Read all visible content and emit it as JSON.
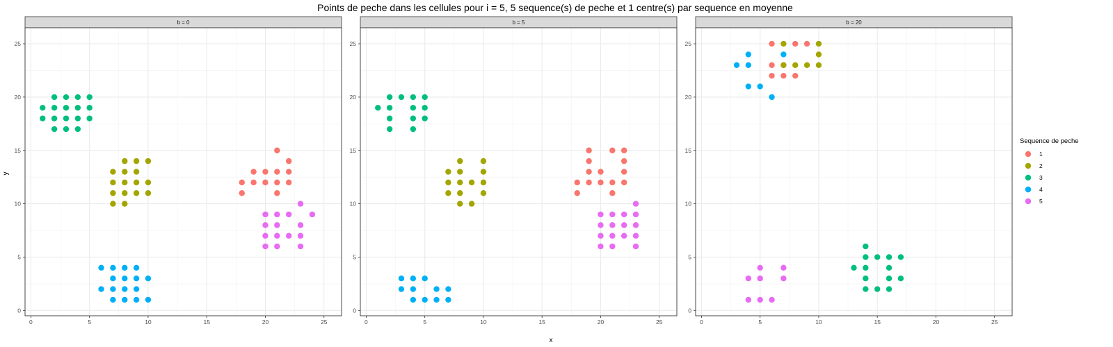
{
  "chart_data": {
    "type": "scatter",
    "title": "Points de peche dans les cellules pour i = 5, 5 sequence(s) de peche et 1 centre(s) par sequence en moyenne",
    "xlabel": "x",
    "ylabel": "y",
    "xlim": [
      -0.5,
      26.5
    ],
    "ylim": [
      -0.5,
      26.5
    ],
    "x_ticks": [
      "0",
      "5",
      "10",
      "15",
      "20",
      "25"
    ],
    "y_ticks": [
      "0",
      "5",
      "10",
      "15",
      "20",
      "25"
    ],
    "grid": true,
    "legend": {
      "title": "Sequence de peche",
      "placement": "right",
      "entries": [
        {
          "label": "1",
          "color": "#F8766D"
        },
        {
          "label": "2",
          "color": "#A3A500"
        },
        {
          "label": "3",
          "color": "#00BF7D"
        },
        {
          "label": "4",
          "color": "#00B0F6"
        },
        {
          "label": "5",
          "color": "#E76BF3"
        }
      ]
    },
    "panels": [
      {
        "strip": "b = 0",
        "series": [
          {
            "name": "1",
            "points": [
              [
                21,
                15
              ],
              [
                22,
                14
              ],
              [
                19,
                13
              ],
              [
                20,
                13
              ],
              [
                21,
                13
              ],
              [
                22,
                13
              ],
              [
                18,
                12
              ],
              [
                19,
                12
              ],
              [
                20,
                12
              ],
              [
                21,
                12
              ],
              [
                22,
                12
              ],
              [
                18,
                11
              ],
              [
                21,
                11
              ]
            ]
          },
          {
            "name": "2",
            "points": [
              [
                8,
                14
              ],
              [
                9,
                14
              ],
              [
                10,
                14
              ],
              [
                7,
                13
              ],
              [
                8,
                13
              ],
              [
                9,
                13
              ],
              [
                7,
                12
              ],
              [
                8,
                12
              ],
              [
                9,
                12
              ],
              [
                10,
                12
              ],
              [
                7,
                11
              ],
              [
                8,
                11
              ],
              [
                9,
                11
              ],
              [
                10,
                11
              ],
              [
                7,
                10
              ],
              [
                8,
                10
              ]
            ]
          },
          {
            "name": "3",
            "points": [
              [
                2,
                20
              ],
              [
                3,
                20
              ],
              [
                4,
                20
              ],
              [
                5,
                20
              ],
              [
                1,
                19
              ],
              [
                2,
                19
              ],
              [
                3,
                19
              ],
              [
                4,
                19
              ],
              [
                5,
                19
              ],
              [
                1,
                18
              ],
              [
                2,
                18
              ],
              [
                3,
                18
              ],
              [
                4,
                18
              ],
              [
                5,
                18
              ],
              [
                2,
                17
              ],
              [
                3,
                17
              ],
              [
                4,
                17
              ]
            ]
          },
          {
            "name": "4",
            "points": [
              [
                6,
                4
              ],
              [
                7,
                4
              ],
              [
                8,
                4
              ],
              [
                9,
                4
              ],
              [
                7,
                3
              ],
              [
                8,
                3
              ],
              [
                9,
                3
              ],
              [
                10,
                3
              ],
              [
                6,
                2
              ],
              [
                7,
                2
              ],
              [
                8,
                2
              ],
              [
                9,
                2
              ],
              [
                7,
                1
              ],
              [
                8,
                1
              ],
              [
                9,
                1
              ],
              [
                10,
                1
              ]
            ]
          },
          {
            "name": "5",
            "points": [
              [
                23,
                10
              ],
              [
                21,
                9
              ],
              [
                22,
                9
              ],
              [
                24,
                9
              ],
              [
                20,
                9
              ],
              [
                20,
                8
              ],
              [
                21,
                8
              ],
              [
                23,
                8
              ],
              [
                20,
                7
              ],
              [
                21,
                7
              ],
              [
                22,
                7
              ],
              [
                23,
                7
              ],
              [
                21,
                6
              ],
              [
                23,
                6
              ],
              [
                20,
                6
              ]
            ]
          }
        ]
      },
      {
        "strip": "b = 5",
        "series": [
          {
            "name": "1",
            "points": [
              [
                19,
                15
              ],
              [
                21,
                15
              ],
              [
                22,
                15
              ],
              [
                19,
                14
              ],
              [
                22,
                14
              ],
              [
                19,
                13
              ],
              [
                20,
                13
              ],
              [
                22,
                13
              ],
              [
                18,
                12
              ],
              [
                19,
                12
              ],
              [
                20,
                12
              ],
              [
                21,
                12
              ],
              [
                22,
                12
              ],
              [
                18,
                11
              ],
              [
                21,
                11
              ]
            ]
          },
          {
            "name": "2",
            "points": [
              [
                8,
                14
              ],
              [
                10,
                14
              ],
              [
                7,
                13
              ],
              [
                8,
                13
              ],
              [
                10,
                13
              ],
              [
                7,
                12
              ],
              [
                8,
                12
              ],
              [
                9,
                12
              ],
              [
                10,
                12
              ],
              [
                7,
                11
              ],
              [
                8,
                11
              ],
              [
                10,
                11
              ],
              [
                8,
                10
              ],
              [
                9,
                10
              ]
            ]
          },
          {
            "name": "3",
            "points": [
              [
                2,
                20
              ],
              [
                3,
                20
              ],
              [
                4,
                20
              ],
              [
                5,
                20
              ],
              [
                1,
                19
              ],
              [
                2,
                19
              ],
              [
                4,
                19
              ],
              [
                5,
                19
              ],
              [
                2,
                18
              ],
              [
                4,
                18
              ],
              [
                5,
                18
              ],
              [
                2,
                17
              ],
              [
                4,
                17
              ]
            ]
          },
          {
            "name": "4",
            "points": [
              [
                3,
                3
              ],
              [
                4,
                3
              ],
              [
                5,
                3
              ],
              [
                3,
                2
              ],
              [
                4,
                2
              ],
              [
                6,
                2
              ],
              [
                7,
                2
              ],
              [
                4,
                1
              ],
              [
                5,
                1
              ],
              [
                6,
                1
              ],
              [
                7,
                1
              ]
            ]
          },
          {
            "name": "5",
            "points": [
              [
                23,
                10
              ],
              [
                20,
                9
              ],
              [
                21,
                9
              ],
              [
                22,
                9
              ],
              [
                23,
                9
              ],
              [
                20,
                8
              ],
              [
                21,
                8
              ],
              [
                22,
                8
              ],
              [
                23,
                8
              ],
              [
                20,
                7
              ],
              [
                21,
                7
              ],
              [
                22,
                7
              ],
              [
                23,
                7
              ],
              [
                20,
                6
              ],
              [
                21,
                6
              ],
              [
                23,
                6
              ]
            ]
          }
        ]
      },
      {
        "strip": "b = 20",
        "series": [
          {
            "name": "1",
            "points": [
              [
                6,
                25
              ],
              [
                8,
                25
              ],
              [
                9,
                25
              ],
              [
                6,
                23
              ],
              [
                7,
                23
              ],
              [
                6,
                22
              ],
              [
                7,
                22
              ],
              [
                8,
                22
              ]
            ]
          },
          {
            "name": "2",
            "points": [
              [
                7,
                25
              ],
              [
                10,
                25
              ],
              [
                10,
                24
              ],
              [
                7,
                23
              ],
              [
                8,
                23
              ],
              [
                9,
                23
              ],
              [
                10,
                23
              ]
            ]
          },
          {
            "name": "3",
            "points": [
              [
                14,
                6
              ],
              [
                14,
                5
              ],
              [
                15,
                5
              ],
              [
                16,
                5
              ],
              [
                17,
                5
              ],
              [
                13,
                4
              ],
              [
                14,
                4
              ],
              [
                16,
                4
              ],
              [
                14,
                3
              ],
              [
                16,
                3
              ],
              [
                17,
                3
              ],
              [
                14,
                2
              ],
              [
                15,
                2
              ],
              [
                16,
                2
              ]
            ]
          },
          {
            "name": "4",
            "points": [
              [
                4,
                24
              ],
              [
                7,
                24
              ],
              [
                3,
                23
              ],
              [
                4,
                23
              ],
              [
                4,
                21
              ],
              [
                5,
                21
              ],
              [
                6,
                20
              ]
            ]
          },
          {
            "name": "5",
            "points": [
              [
                5,
                4
              ],
              [
                7,
                4
              ],
              [
                4,
                3
              ],
              [
                5,
                3
              ],
              [
                7,
                3
              ],
              [
                4,
                1
              ],
              [
                5,
                1
              ],
              [
                6,
                1
              ]
            ]
          }
        ]
      }
    ]
  }
}
